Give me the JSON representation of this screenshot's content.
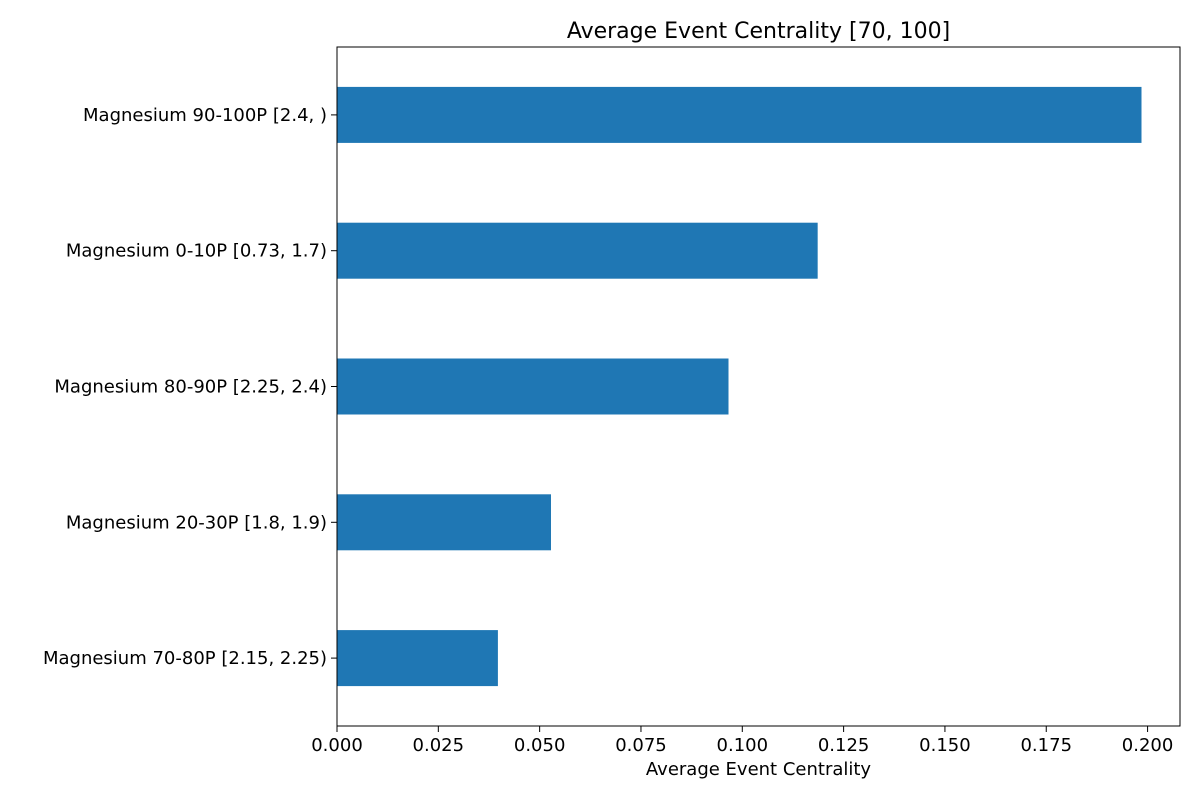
{
  "chart_data": {
    "type": "bar",
    "orientation": "horizontal",
    "title": "Average Event Centrality [70, 100]",
    "xlabel": "Average Event Centrality",
    "ylabel": "",
    "categories": [
      "Magnesium 90-100P [2.4, )",
      "Magnesium 0-10P [0.73, 1.7)",
      "Magnesium 80-90P [2.25, 2.4)",
      "Magnesium 20-30P [1.8, 1.9)",
      "Magnesium 70-80P [2.15, 2.25)"
    ],
    "values": [
      0.1985,
      0.1186,
      0.0966,
      0.0528,
      0.0397
    ],
    "xlim": [
      0,
      0.208
    ],
    "xticks": [
      "0.000",
      "0.025",
      "0.050",
      "0.075",
      "0.100",
      "0.125",
      "0.150",
      "0.175",
      "0.200"
    ],
    "grid": false,
    "legend": "none",
    "bar_color": "#1f77b4"
  }
}
